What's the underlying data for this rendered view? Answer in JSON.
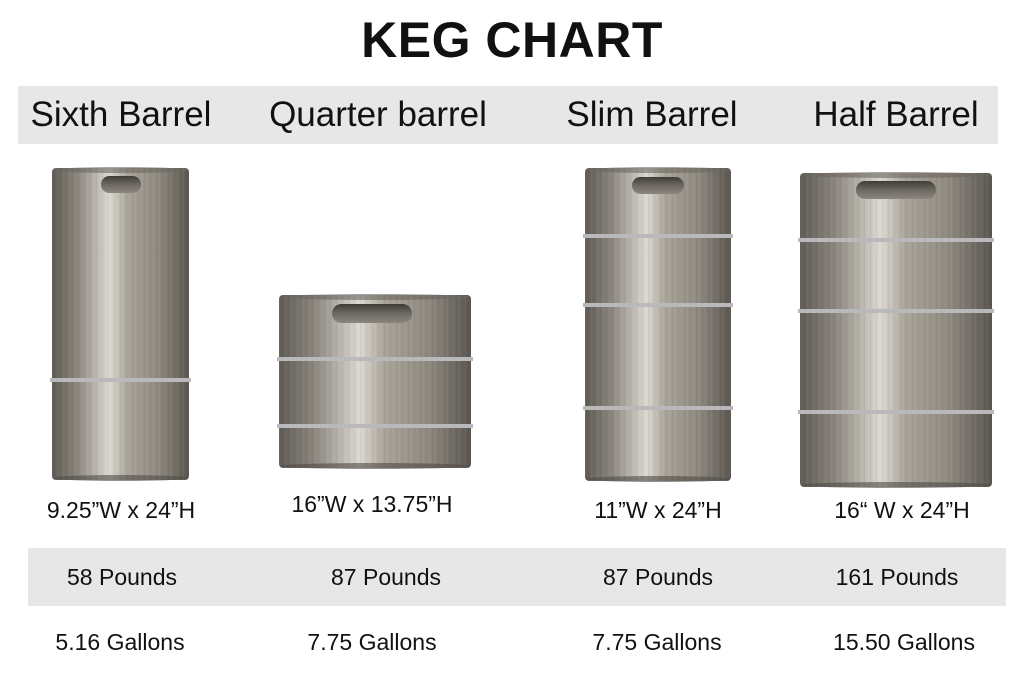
{
  "title": "KEG CHART",
  "colors": {
    "band": "#e8e7e8",
    "keg_body": "#8a857c",
    "keg_highlight": "#d9d6cf",
    "hoop": "#b9b9bb",
    "handle": "#5e5a54"
  },
  "kegs": [
    {
      "name": "Sixth Barrel",
      "dimensions": "9.25”W x 24”H",
      "weight": "58 Pounds",
      "volume": "5.16 Gallons"
    },
    {
      "name": "Quarter barrel",
      "dimensions": "16”W x 13.75”H",
      "weight": "87 Pounds",
      "volume": "7.75 Gallons"
    },
    {
      "name": "Slim Barrel",
      "dimensions": "11”W x 24”H",
      "weight": "87 Pounds",
      "volume": "7.75 Gallons"
    },
    {
      "name": "Half Barrel",
      "dimensions": "16“ W x 24”H",
      "weight": "161 Pounds",
      "volume": "15.50 Gallons"
    }
  ]
}
